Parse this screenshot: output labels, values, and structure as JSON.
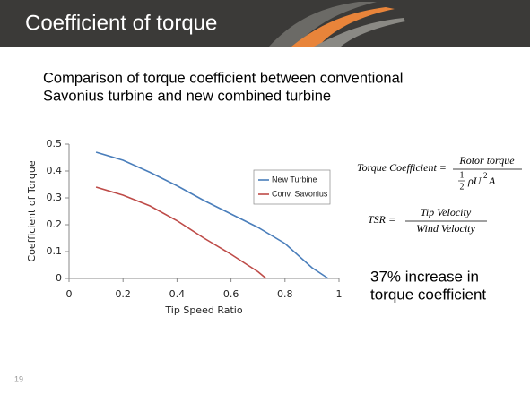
{
  "slide": {
    "title": "Coefficient of torque",
    "subtitle": [
      "Comparison of torque coefficient between conventional",
      "Savonius turbine and new combined turbine"
    ],
    "equations": {
      "torque": {
        "lhs": "Torque Coefficient =",
        "numerator": "Rotor torque",
        "half_num": "1",
        "half_den": "2",
        "den_base": "ρU",
        "den_exp": "2",
        "den_tail": "A"
      },
      "tsr": {
        "lhs": "TSR =",
        "numerator": "Tip Velocity",
        "denominator": "Wind Velocity"
      }
    },
    "note": [
      "37% increase in",
      "torque coefficient"
    ],
    "page_number": "19"
  },
  "chart_data": {
    "type": "line",
    "xlabel": "Tip Speed Ratio",
    "ylabel": "Coefficient of Torque",
    "xlim": [
      0,
      1
    ],
    "xticks": [
      0,
      0.2,
      0.4,
      0.6,
      0.8,
      1
    ],
    "ylim": [
      0,
      0.5
    ],
    "yticks": [
      0,
      0.1,
      0.2,
      0.3,
      0.4,
      0.5
    ],
    "grid": false,
    "legend": "right",
    "series": [
      {
        "name": "New Turbine",
        "color": "#4a7ebb",
        "x": [
          0.1,
          0.2,
          0.3,
          0.4,
          0.5,
          0.6,
          0.7,
          0.8,
          0.9,
          0.96
        ],
        "values": [
          0.47,
          0.44,
          0.395,
          0.345,
          0.29,
          0.24,
          0.19,
          0.13,
          0.04,
          0
        ]
      },
      {
        "name": "Conv. Savonius",
        "color": "#be4b48",
        "x": [
          0.1,
          0.2,
          0.3,
          0.4,
          0.5,
          0.6,
          0.7,
          0.73
        ],
        "values": [
          0.34,
          0.31,
          0.27,
          0.215,
          0.15,
          0.09,
          0.025,
          0
        ]
      }
    ]
  }
}
